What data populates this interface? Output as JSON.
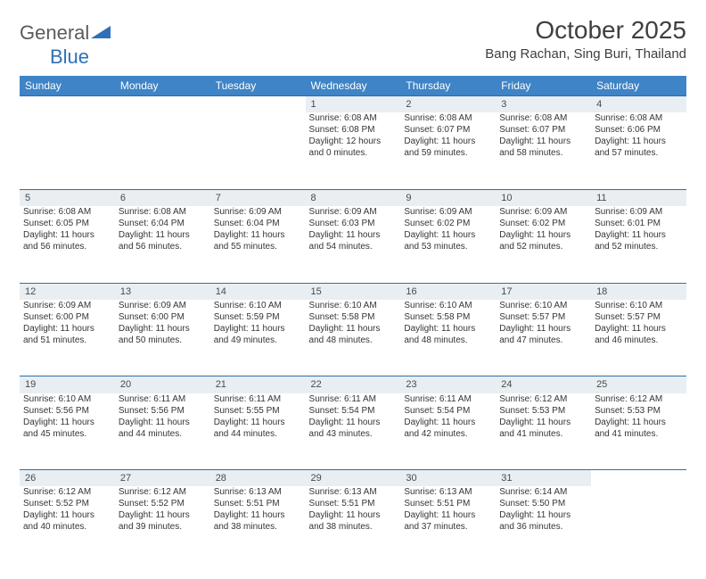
{
  "logo": {
    "word1": "General",
    "word2": "Blue"
  },
  "title": "October 2025",
  "location": "Bang Rachan, Sing Buri, Thailand",
  "columns": [
    "Sunday",
    "Monday",
    "Tuesday",
    "Wednesday",
    "Thursday",
    "Friday",
    "Saturday"
  ],
  "colors": {
    "header_bg": "#3e84c6",
    "header_text": "#ffffff",
    "daynum_bg": "#e9eef2",
    "border_top": "#2e6fa8",
    "text": "#353535",
    "logo_gray": "#5b5b5b",
    "logo_blue": "#2d71b8"
  },
  "weeks": [
    [
      null,
      null,
      null,
      {
        "n": "1",
        "sr": "Sunrise: 6:08 AM",
        "ss": "Sunset: 6:08 PM",
        "d1": "Daylight: 12 hours",
        "d2": "and 0 minutes."
      },
      {
        "n": "2",
        "sr": "Sunrise: 6:08 AM",
        "ss": "Sunset: 6:07 PM",
        "d1": "Daylight: 11 hours",
        "d2": "and 59 minutes."
      },
      {
        "n": "3",
        "sr": "Sunrise: 6:08 AM",
        "ss": "Sunset: 6:07 PM",
        "d1": "Daylight: 11 hours",
        "d2": "and 58 minutes."
      },
      {
        "n": "4",
        "sr": "Sunrise: 6:08 AM",
        "ss": "Sunset: 6:06 PM",
        "d1": "Daylight: 11 hours",
        "d2": "and 57 minutes."
      }
    ],
    [
      {
        "n": "5",
        "sr": "Sunrise: 6:08 AM",
        "ss": "Sunset: 6:05 PM",
        "d1": "Daylight: 11 hours",
        "d2": "and 56 minutes."
      },
      {
        "n": "6",
        "sr": "Sunrise: 6:08 AM",
        "ss": "Sunset: 6:04 PM",
        "d1": "Daylight: 11 hours",
        "d2": "and 56 minutes."
      },
      {
        "n": "7",
        "sr": "Sunrise: 6:09 AM",
        "ss": "Sunset: 6:04 PM",
        "d1": "Daylight: 11 hours",
        "d2": "and 55 minutes."
      },
      {
        "n": "8",
        "sr": "Sunrise: 6:09 AM",
        "ss": "Sunset: 6:03 PM",
        "d1": "Daylight: 11 hours",
        "d2": "and 54 minutes."
      },
      {
        "n": "9",
        "sr": "Sunrise: 6:09 AM",
        "ss": "Sunset: 6:02 PM",
        "d1": "Daylight: 11 hours",
        "d2": "and 53 minutes."
      },
      {
        "n": "10",
        "sr": "Sunrise: 6:09 AM",
        "ss": "Sunset: 6:02 PM",
        "d1": "Daylight: 11 hours",
        "d2": "and 52 minutes."
      },
      {
        "n": "11",
        "sr": "Sunrise: 6:09 AM",
        "ss": "Sunset: 6:01 PM",
        "d1": "Daylight: 11 hours",
        "d2": "and 52 minutes."
      }
    ],
    [
      {
        "n": "12",
        "sr": "Sunrise: 6:09 AM",
        "ss": "Sunset: 6:00 PM",
        "d1": "Daylight: 11 hours",
        "d2": "and 51 minutes."
      },
      {
        "n": "13",
        "sr": "Sunrise: 6:09 AM",
        "ss": "Sunset: 6:00 PM",
        "d1": "Daylight: 11 hours",
        "d2": "and 50 minutes."
      },
      {
        "n": "14",
        "sr": "Sunrise: 6:10 AM",
        "ss": "Sunset: 5:59 PM",
        "d1": "Daylight: 11 hours",
        "d2": "and 49 minutes."
      },
      {
        "n": "15",
        "sr": "Sunrise: 6:10 AM",
        "ss": "Sunset: 5:58 PM",
        "d1": "Daylight: 11 hours",
        "d2": "and 48 minutes."
      },
      {
        "n": "16",
        "sr": "Sunrise: 6:10 AM",
        "ss": "Sunset: 5:58 PM",
        "d1": "Daylight: 11 hours",
        "d2": "and 48 minutes."
      },
      {
        "n": "17",
        "sr": "Sunrise: 6:10 AM",
        "ss": "Sunset: 5:57 PM",
        "d1": "Daylight: 11 hours",
        "d2": "and 47 minutes."
      },
      {
        "n": "18",
        "sr": "Sunrise: 6:10 AM",
        "ss": "Sunset: 5:57 PM",
        "d1": "Daylight: 11 hours",
        "d2": "and 46 minutes."
      }
    ],
    [
      {
        "n": "19",
        "sr": "Sunrise: 6:10 AM",
        "ss": "Sunset: 5:56 PM",
        "d1": "Daylight: 11 hours",
        "d2": "and 45 minutes."
      },
      {
        "n": "20",
        "sr": "Sunrise: 6:11 AM",
        "ss": "Sunset: 5:56 PM",
        "d1": "Daylight: 11 hours",
        "d2": "and 44 minutes."
      },
      {
        "n": "21",
        "sr": "Sunrise: 6:11 AM",
        "ss": "Sunset: 5:55 PM",
        "d1": "Daylight: 11 hours",
        "d2": "and 44 minutes."
      },
      {
        "n": "22",
        "sr": "Sunrise: 6:11 AM",
        "ss": "Sunset: 5:54 PM",
        "d1": "Daylight: 11 hours",
        "d2": "and 43 minutes."
      },
      {
        "n": "23",
        "sr": "Sunrise: 6:11 AM",
        "ss": "Sunset: 5:54 PM",
        "d1": "Daylight: 11 hours",
        "d2": "and 42 minutes."
      },
      {
        "n": "24",
        "sr": "Sunrise: 6:12 AM",
        "ss": "Sunset: 5:53 PM",
        "d1": "Daylight: 11 hours",
        "d2": "and 41 minutes."
      },
      {
        "n": "25",
        "sr": "Sunrise: 6:12 AM",
        "ss": "Sunset: 5:53 PM",
        "d1": "Daylight: 11 hours",
        "d2": "and 41 minutes."
      }
    ],
    [
      {
        "n": "26",
        "sr": "Sunrise: 6:12 AM",
        "ss": "Sunset: 5:52 PM",
        "d1": "Daylight: 11 hours",
        "d2": "and 40 minutes."
      },
      {
        "n": "27",
        "sr": "Sunrise: 6:12 AM",
        "ss": "Sunset: 5:52 PM",
        "d1": "Daylight: 11 hours",
        "d2": "and 39 minutes."
      },
      {
        "n": "28",
        "sr": "Sunrise: 6:13 AM",
        "ss": "Sunset: 5:51 PM",
        "d1": "Daylight: 11 hours",
        "d2": "and 38 minutes."
      },
      {
        "n": "29",
        "sr": "Sunrise: 6:13 AM",
        "ss": "Sunset: 5:51 PM",
        "d1": "Daylight: 11 hours",
        "d2": "and 38 minutes."
      },
      {
        "n": "30",
        "sr": "Sunrise: 6:13 AM",
        "ss": "Sunset: 5:51 PM",
        "d1": "Daylight: 11 hours",
        "d2": "and 37 minutes."
      },
      {
        "n": "31",
        "sr": "Sunrise: 6:14 AM",
        "ss": "Sunset: 5:50 PM",
        "d1": "Daylight: 11 hours",
        "d2": "and 36 minutes."
      },
      null
    ]
  ]
}
